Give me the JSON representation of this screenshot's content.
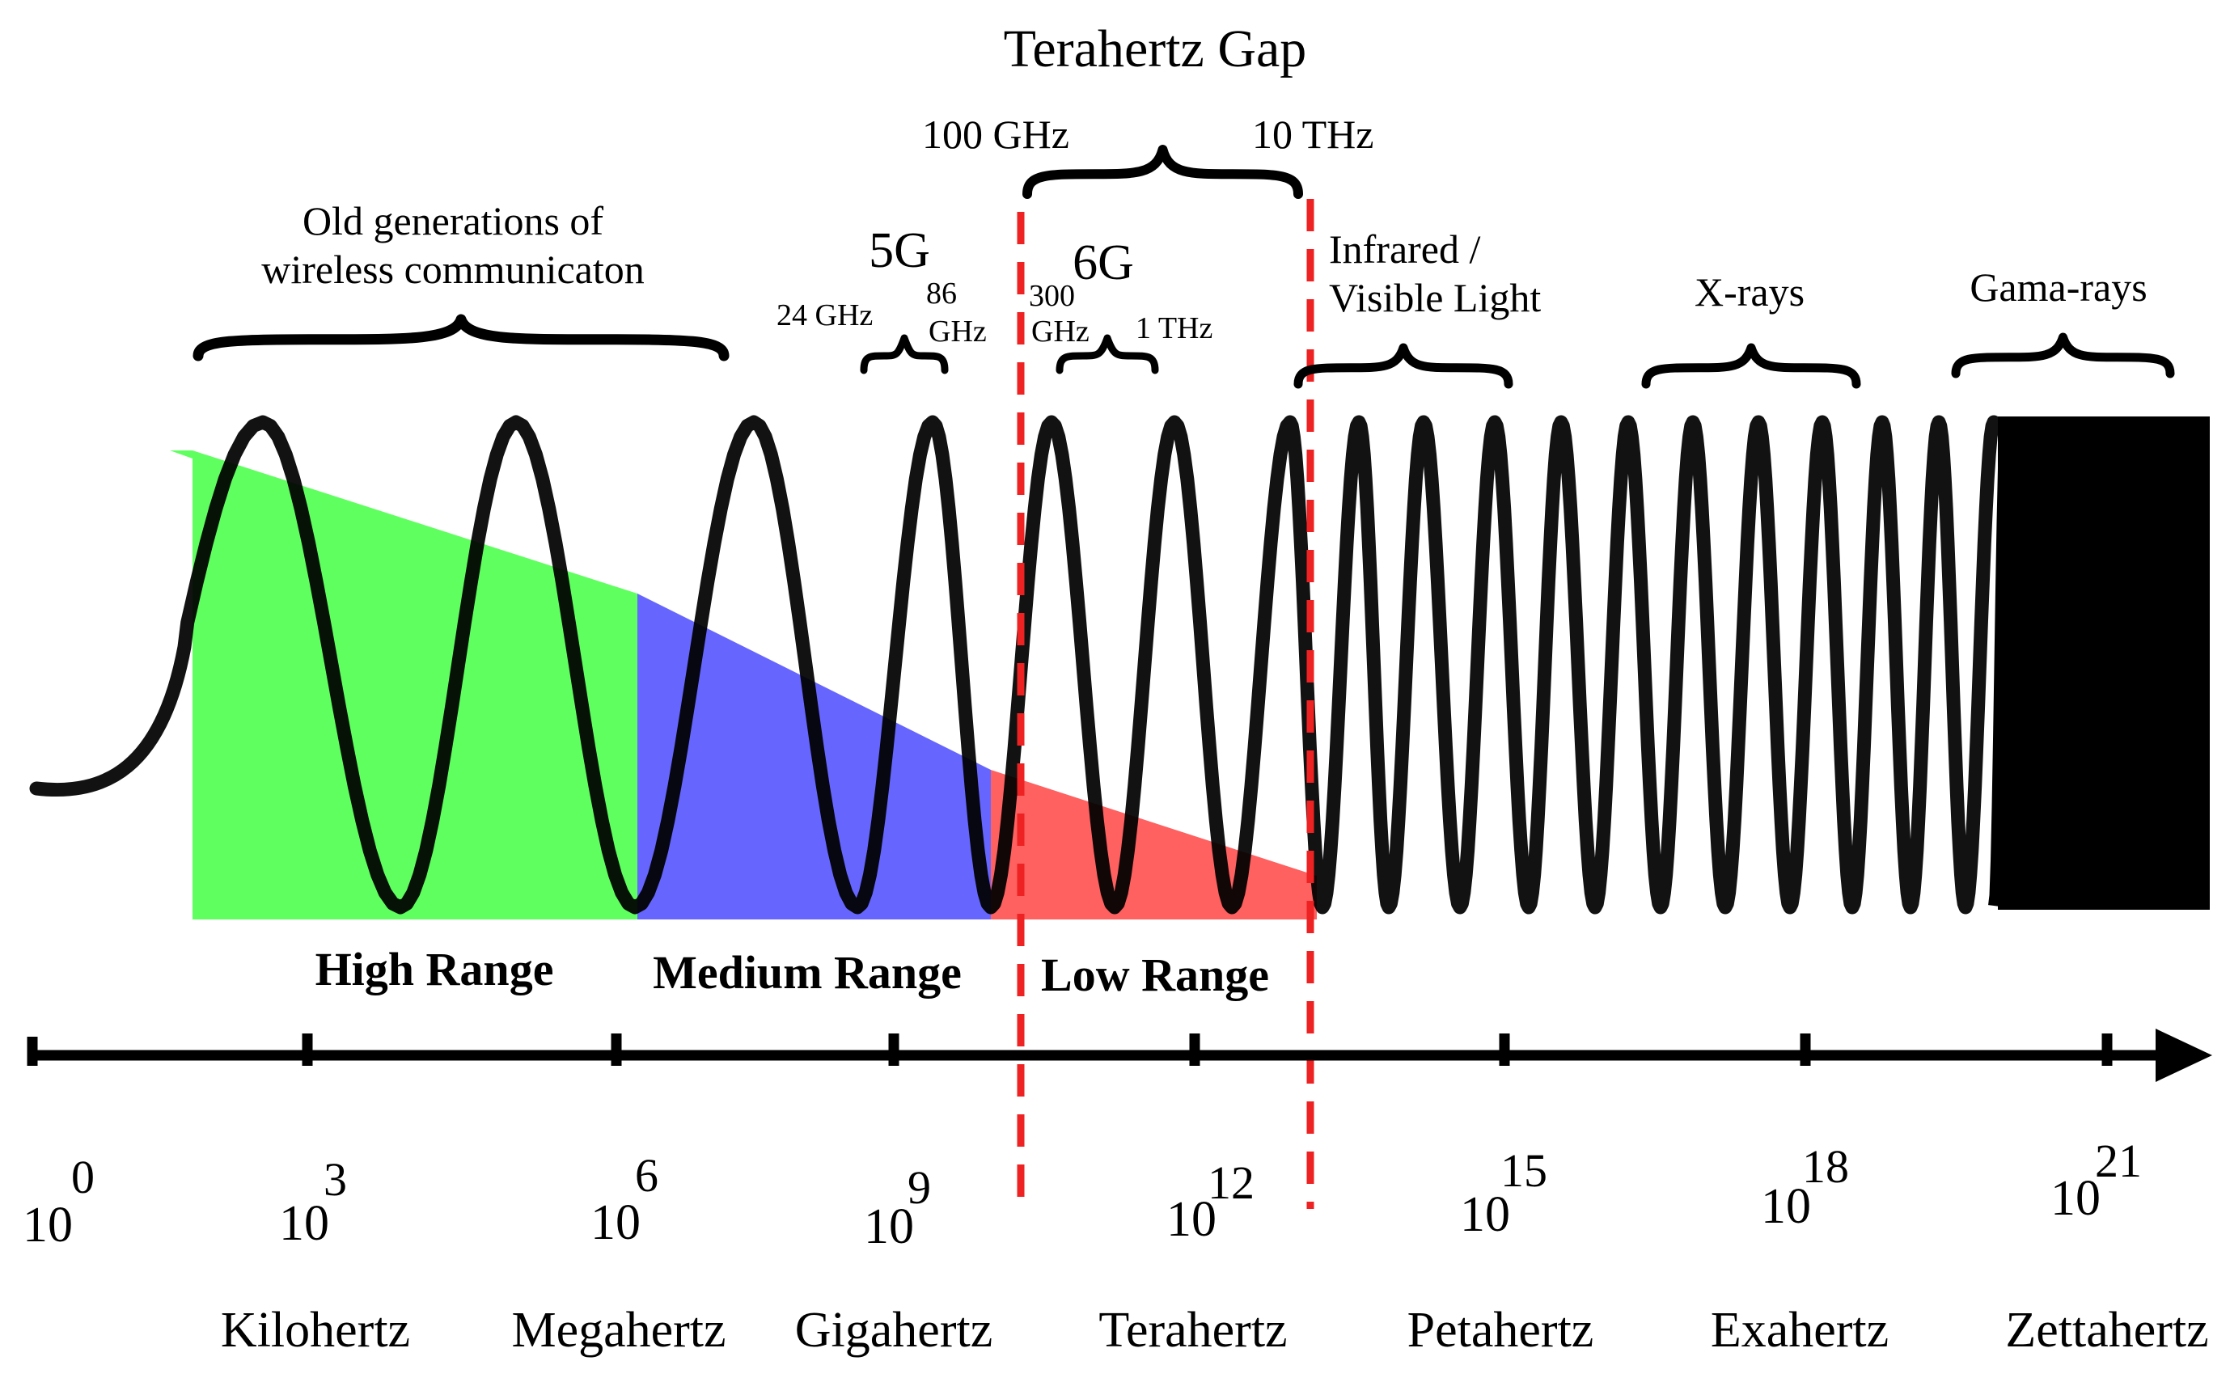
{
  "title": "Terahertz Gap",
  "gap_bounds": {
    "lower": "100  GHz",
    "upper": "10  THz"
  },
  "bands": {
    "old_generations": {
      "line1": "Old generations of",
      "line2": "wireless communicaton"
    },
    "five_g": {
      "label": "5G",
      "lower": "24 GHz",
      "upper_1": "86",
      "upper_2": "GHz"
    },
    "six_g": {
      "label": "6G",
      "lower_1": "300",
      "lower_2": "GHz",
      "upper": "1 THz"
    },
    "infrared": {
      "line1": "Infrared /",
      "line2": "Visible  Light"
    },
    "xrays": "X-rays",
    "gamma": "Gama-rays"
  },
  "ranges": {
    "high": {
      "label": "High Range",
      "color": "#44ff44"
    },
    "medium": {
      "label": "Medium Range",
      "color": "#3333ff"
    },
    "low": {
      "label": "Low Range",
      "color": "#ff2222"
    }
  },
  "axis": {
    "ticks": [
      {
        "base": "10",
        "exp": "0"
      },
      {
        "base": "10",
        "exp": "3"
      },
      {
        "base": "10",
        "exp": "6"
      },
      {
        "base": "10",
        "exp": "9"
      },
      {
        "base": "10",
        "exp": "12"
      },
      {
        "base": "10",
        "exp": "15"
      },
      {
        "base": "10",
        "exp": "18"
      },
      {
        "base": "10",
        "exp": "21"
      }
    ],
    "units": [
      "Kilohertz",
      "Megahertz",
      "Gigahertz",
      "Terahertz",
      "Petahertz",
      "Exahertz",
      "Zettahertz"
    ]
  },
  "colors": {
    "gap_marker": "#ee2222",
    "wave": "#000000"
  }
}
